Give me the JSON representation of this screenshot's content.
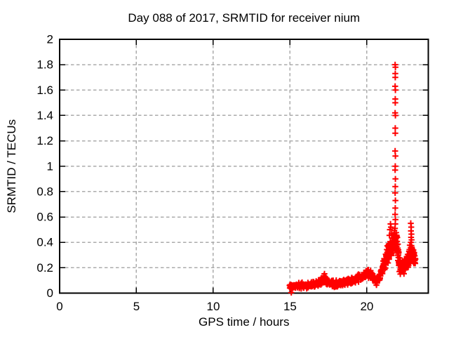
{
  "figure": {
    "background_color": "#ffffff",
    "text_color": "#000000"
  },
  "chart_data": {
    "type": "scatter",
    "title": "Day 088 of 2017, SRMTID for receiver nium",
    "xlabel": "GPS time / hours",
    "ylabel": "SRMTID / TECUs",
    "xlim": [
      0,
      24
    ],
    "ylim": [
      0,
      2
    ],
    "x_ticks": {
      "values": [
        0,
        5,
        10,
        15,
        20
      ],
      "labels": [
        "0",
        "5",
        "10",
        "15",
        "20"
      ]
    },
    "y_ticks": {
      "values": [
        0,
        0.2,
        0.4,
        0.6,
        0.8,
        1,
        1.2,
        1.4,
        1.6,
        1.8,
        2
      ],
      "labels": [
        "0",
        "0.2",
        "0.4",
        "0.6",
        "0.8",
        "1",
        "1.2",
        "1.4",
        "1.6",
        "1.8",
        "2"
      ]
    },
    "grid": true,
    "grid_style": "dashed",
    "legend": "none",
    "colors": {
      "marker": "#ff0000",
      "grid": "#ababab",
      "border": "#000000",
      "background": "#ffffff"
    },
    "marker": {
      "shape": "plus",
      "size": 8.5,
      "stroke_width": 2
    },
    "series": {
      "name": "SRMTID",
      "description": "Red plus markers; no data before 15 h. Dense noisy band from 15 h (~0.05 TECU) slowly rising to ~0.15 by 20 h, dip near 20.5 h, steep rise after 21 h into a narrow spike at ~21.85 h peaking at 1.8 TECU, then a lower cluster 22.1-23.2 h around 0.1-0.55 TECU.",
      "band": {
        "start": 14.97,
        "end": 23.17,
        "step": 0.014,
        "x_jitter": 0.006,
        "y_min": 0.008,
        "seed": 20170088
      },
      "dense_segments": [
        {
          "start": 21.0,
          "end": 23.15,
          "step": 0.016
        },
        {
          "start": 21.35,
          "end": 21.72,
          "step": 0.02
        },
        {
          "start": 22.35,
          "end": 23.0,
          "step": 0.025
        }
      ],
      "trend": [
        [
          14.97,
          0.045,
          0.032
        ],
        [
          15.3,
          0.055,
          0.034
        ],
        [
          15.8,
          0.06,
          0.034
        ],
        [
          16.3,
          0.062,
          0.035
        ],
        [
          16.8,
          0.075,
          0.038
        ],
        [
          17.1,
          0.09,
          0.042
        ],
        [
          17.25,
          0.105,
          0.045
        ],
        [
          17.45,
          0.085,
          0.038
        ],
        [
          17.8,
          0.072,
          0.035
        ],
        [
          18.1,
          0.07,
          0.035
        ],
        [
          18.5,
          0.088,
          0.04
        ],
        [
          18.9,
          0.098,
          0.042
        ],
        [
          19.3,
          0.108,
          0.045
        ],
        [
          19.7,
          0.13,
          0.048
        ],
        [
          20.0,
          0.155,
          0.05
        ],
        [
          20.25,
          0.155,
          0.052
        ],
        [
          20.45,
          0.105,
          0.042
        ],
        [
          20.65,
          0.095,
          0.045
        ],
        [
          20.85,
          0.13,
          0.055
        ],
        [
          21.05,
          0.2,
          0.07
        ],
        [
          21.25,
          0.28,
          0.085
        ],
        [
          21.45,
          0.33,
          0.095
        ],
        [
          21.65,
          0.38,
          0.095
        ],
        [
          21.8,
          0.44,
          0.085
        ],
        [
          21.95,
          0.42,
          0.11
        ],
        [
          22.1,
          0.24,
          0.085
        ],
        [
          22.3,
          0.19,
          0.06
        ],
        [
          22.5,
          0.22,
          0.065
        ],
        [
          22.7,
          0.27,
          0.085
        ],
        [
          22.88,
          0.33,
          0.1
        ],
        [
          23.0,
          0.3,
          0.085
        ],
        [
          23.17,
          0.26,
          0.06
        ]
      ],
      "feature_points": [
        [
          15.08,
          0.004
        ],
        [
          17.24,
          0.152
        ],
        [
          17.2,
          0.138
        ],
        [
          17.3,
          0.128
        ],
        [
          21.54,
          0.545
        ],
        [
          21.57,
          0.52
        ],
        [
          21.5,
          0.5
        ],
        [
          21.61,
          0.47
        ],
        [
          21.47,
          0.455
        ],
        [
          21.64,
          0.435
        ],
        [
          21.84,
          1.8
        ],
        [
          21.86,
          1.78
        ],
        [
          21.85,
          1.73
        ],
        [
          21.85,
          1.7
        ],
        [
          21.84,
          1.63
        ],
        [
          21.86,
          1.6
        ],
        [
          21.85,
          1.53
        ],
        [
          21.85,
          1.5
        ],
        [
          21.84,
          1.42
        ],
        [
          21.86,
          1.4
        ],
        [
          21.85,
          1.3
        ],
        [
          21.85,
          1.26
        ],
        [
          21.84,
          1.12
        ],
        [
          21.86,
          1.08
        ],
        [
          21.85,
          1.0
        ],
        [
          21.84,
          0.97
        ],
        [
          21.86,
          0.9
        ],
        [
          21.85,
          0.84
        ],
        [
          21.84,
          0.79
        ],
        [
          21.86,
          0.73
        ],
        [
          21.85,
          0.67
        ],
        [
          21.84,
          0.62
        ],
        [
          21.86,
          0.58
        ],
        [
          21.85,
          0.545
        ],
        [
          21.83,
          0.51
        ],
        [
          22.05,
          0.3
        ],
        [
          22.08,
          0.22
        ],
        [
          22.12,
          0.17
        ],
        [
          22.18,
          0.15
        ],
        [
          22.86,
          0.55
        ],
        [
          22.89,
          0.52
        ],
        [
          22.87,
          0.49
        ],
        [
          22.9,
          0.465
        ],
        [
          22.88,
          0.44
        ],
        [
          22.91,
          0.42
        ],
        [
          22.86,
          0.4
        ],
        [
          22.9,
          0.375
        ],
        [
          22.92,
          0.35
        ],
        [
          22.88,
          0.325
        ],
        [
          22.9,
          0.3
        ]
      ]
    }
  }
}
